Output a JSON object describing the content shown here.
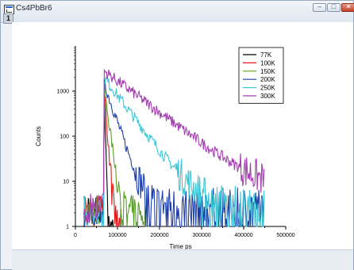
{
  "window": {
    "title": "Cs4PbBr6",
    "layer_label": "1"
  },
  "chart_data": {
    "type": "line",
    "title": "",
    "xlabel": "Time ps",
    "ylabel": "Counts",
    "xlim": [
      0,
      500000
    ],
    "ylim": [
      1,
      10000
    ],
    "y_scale": "log",
    "x_ticks": [
      0,
      100000,
      200000,
      300000,
      400000,
      500000
    ],
    "x_tick_labels": [
      "0",
      "100000",
      "200000",
      "300000",
      "400000",
      "500000"
    ],
    "y_ticks": [
      1,
      10,
      100,
      1000
    ],
    "y_tick_labels": [
      "1",
      "10",
      "100",
      "1000"
    ],
    "grid": false,
    "legend_position": "top-right",
    "series": [
      {
        "name": "77K",
        "color": "#000000",
        "peak": 1200,
        "tau": 1500,
        "background": 1,
        "end": 95000
      },
      {
        "name": "100K",
        "color": "#e31a1c",
        "peak": 1200,
        "tau": 3500,
        "background": 1,
        "end": 110000
      },
      {
        "name": "150K",
        "color": "#5aa02c",
        "peak": 1200,
        "tau": 6500,
        "background": 2,
        "end": 180000
      },
      {
        "name": "200K",
        "color": "#1f3fa8",
        "peak": 1500,
        "tau": 16000,
        "background": 3,
        "end": 450000
      },
      {
        "name": "250K",
        "color": "#3fc7d6",
        "peak": 2000,
        "tau": 35000,
        "background": 3,
        "end": 450000
      },
      {
        "name": "300K",
        "color": "#a43fb0",
        "peak": 2800,
        "tau": 62000,
        "background": 5,
        "end": 450000
      }
    ],
    "peak_x": 68000,
    "start_x": 0
  }
}
